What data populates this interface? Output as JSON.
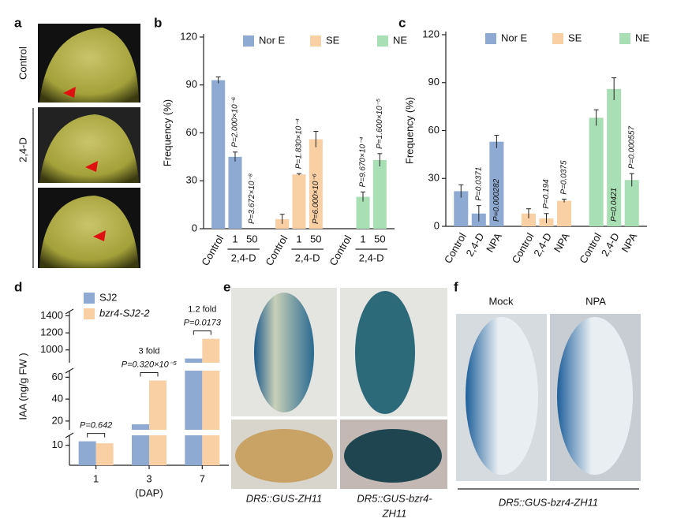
{
  "panel_labels": [
    "a",
    "b",
    "c",
    "d",
    "e",
    "f"
  ],
  "photo_a": {
    "labels": [
      "Control",
      "2,4-D"
    ]
  },
  "photo_e": {
    "captions": [
      "DR5::GUS-ZH11",
      "DR5::GUS-bzr4-",
      "ZH11"
    ]
  },
  "photo_f": {
    "labels": [
      "Mock",
      "NPA"
    ],
    "caption": "DR5::GUS-bzr4-ZH11"
  },
  "chart_data": [
    {
      "type": "bar",
      "y_label": "Frequency (%)",
      "categories": [
        "Control",
        "1",
        "50",
        "Control",
        "1",
        "50",
        "Control",
        "1",
        "50"
      ],
      "groups": [
        "2,4-D",
        "2,4-D",
        "2,4-D"
      ],
      "series": [
        {
          "name": "Nor E",
          "color": "#8eaad3",
          "values": [
            93,
            45,
            0,
            null,
            null,
            null,
            null,
            null,
            null
          ],
          "errors": [
            2,
            3,
            0,
            null,
            null,
            null,
            null,
            null,
            null
          ]
        },
        {
          "name": "SE",
          "color": "#f9cfa4",
          "values": [
            null,
            null,
            null,
            6,
            34,
            56,
            null,
            null,
            null
          ],
          "errors": [
            null,
            null,
            null,
            3,
            0.5,
            5,
            null,
            null,
            null
          ]
        },
        {
          "name": "NE",
          "color": "#a9dfb4",
          "values": [
            null,
            null,
            null,
            null,
            null,
            null,
            0,
            20,
            43
          ],
          "errors": [
            null,
            null,
            null,
            null,
            null,
            null,
            0,
            3,
            4
          ]
        }
      ],
      "annotations": [
        null,
        "P=2.000×10⁻⁶",
        "P=3.672×10⁻⁸",
        null,
        "P=1.830×10⁻⁴",
        "P=6.000×10⁻⁶",
        null,
        "P=9.670×10⁻⁴",
        "P=1.600×10⁻⁵"
      ],
      "ylim": [
        0,
        120
      ],
      "yticks": [
        0,
        30,
        60,
        90,
        120
      ],
      "legend": "top"
    },
    {
      "type": "bar",
      "y_label": "Frequency (%)",
      "categories": [
        "Control",
        "2,4-D",
        "NPA",
        "Control",
        "2,4-D",
        "NPA",
        "Control",
        "2,4-D",
        "NPA"
      ],
      "series": [
        {
          "name": "Nor E",
          "color": "#8eaad3",
          "values": [
            22,
            8,
            53,
            null,
            null,
            null,
            null,
            null,
            null
          ],
          "errors": [
            4,
            5,
            4,
            null,
            null,
            null,
            null,
            null,
            null
          ]
        },
        {
          "name": "SE",
          "color": "#f9cfa4",
          "values": [
            null,
            null,
            null,
            8,
            5,
            16,
            null,
            null,
            null
          ],
          "errors": [
            null,
            null,
            null,
            3,
            3,
            1,
            null,
            null,
            null
          ]
        },
        {
          "name": "NE",
          "color": "#a9dfb4",
          "values": [
            null,
            null,
            null,
            null,
            null,
            null,
            68,
            86,
            29
          ],
          "errors": [
            null,
            null,
            null,
            null,
            null,
            null,
            5,
            7,
            4
          ]
        }
      ],
      "annotations": [
        null,
        "P=0.0371",
        "P=0.000282",
        null,
        "P=0.194",
        "P=0.0375",
        null,
        "P=0.0421",
        "P=0.000557"
      ],
      "ylim": [
        0,
        120
      ],
      "yticks": [
        0,
        30,
        60,
        90,
        120
      ],
      "legend": "top"
    },
    {
      "type": "bar",
      "y_label": "IAA (ng/g FW )",
      "x_label": "(DAP)",
      "categories": [
        "1",
        "3",
        "7"
      ],
      "series": [
        {
          "name": "SJ2",
          "color": "#8eaad3",
          "values": [
            12,
            17,
            900
          ]
        },
        {
          "name": "bzr4-SJ2-2",
          "color": "#f9cfa4",
          "values": [
            11,
            57,
            1130
          ]
        }
      ],
      "y_segments": [
        {
          "ylim": [
            0,
            15
          ],
          "yticks": [
            10
          ]
        },
        {
          "ylim": [
            12,
            66
          ],
          "yticks": [
            20,
            40,
            60
          ]
        },
        {
          "ylim": [
            850,
            1450
          ],
          "yticks": [
            1000,
            1200,
            1400
          ]
        }
      ],
      "annotations": [
        [
          "P=0.642"
        ],
        [
          "3 fold",
          "P=0.320×10⁻⁵"
        ],
        [
          "1.2 fold",
          "P=0.0173"
        ]
      ],
      "legend": "top-left"
    }
  ]
}
